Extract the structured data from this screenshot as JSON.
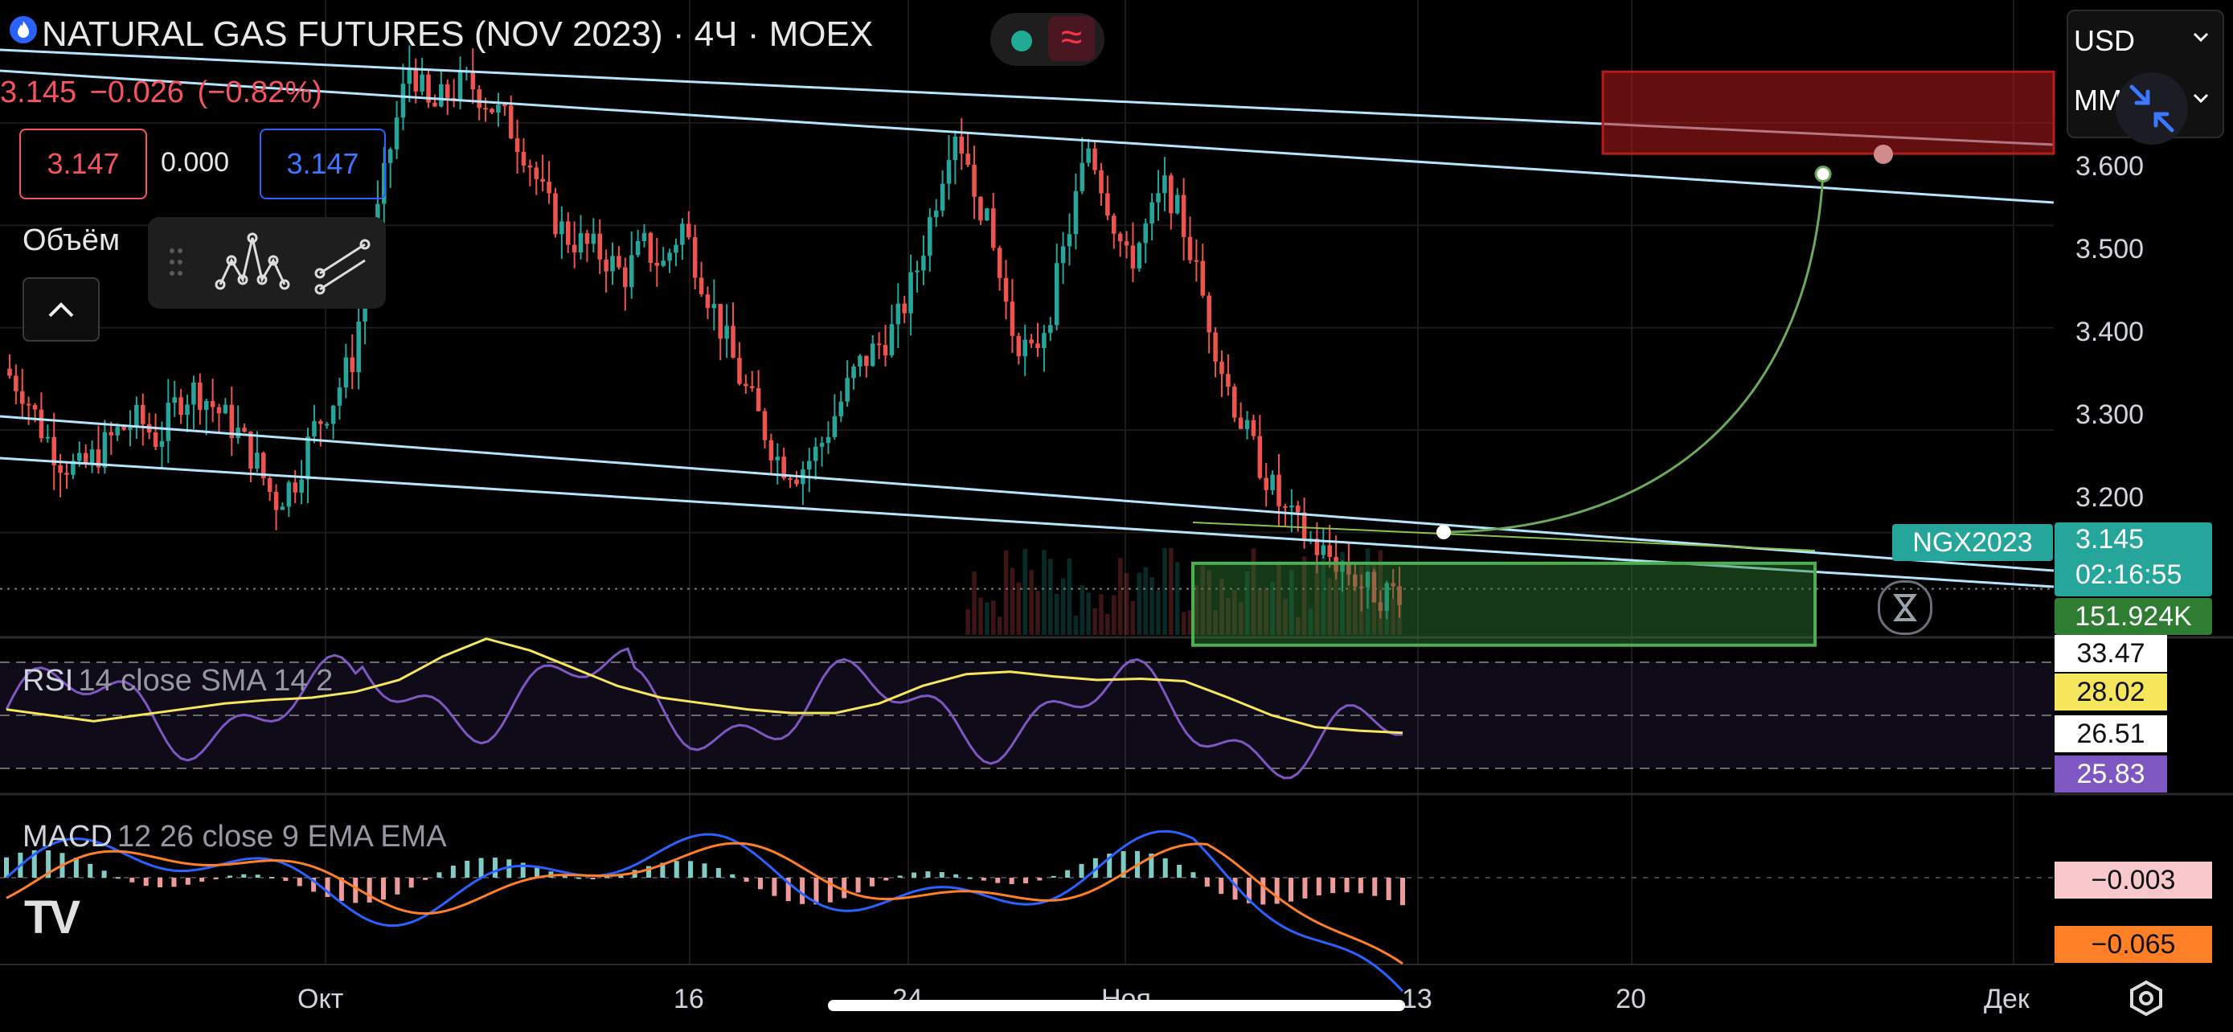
{
  "header": {
    "title": "NATURAL GAS FUTURES (NOV 2023) · 4Ч · MOEX",
    "change_price": "3.145",
    "change_abs": "−0.026",
    "change_pct": "(−0.82%)",
    "bid": "3.147",
    "spread": "0.000",
    "ask": "3.147",
    "wave_icon": "≈"
  },
  "indicators": {
    "volume_label": "Объём",
    "rsi_name": "RSI",
    "rsi_params": "14 close SMA 14 2",
    "macd_name": "MACD",
    "macd_params": "12 26 close 9 EMA EMA"
  },
  "currency": {
    "currency": "USD",
    "unit": "MM"
  },
  "price_axis": {
    "ticks": [
      "3.600",
      "3.500",
      "3.400",
      "3.300",
      "3.200"
    ],
    "symbol_label": "NGX2023",
    "last_price": "3.145",
    "countdown": "02:16:55",
    "volume": "151.924K"
  },
  "rsi_axis": {
    "values": [
      "33.47",
      "28.02",
      "26.51",
      "25.83"
    ]
  },
  "macd_axis": {
    "values": [
      "−0.003",
      "−0.065"
    ]
  },
  "time_axis": {
    "labels": [
      "Окт",
      "16",
      "24",
      "Ноя",
      "13",
      "20",
      "Дек"
    ]
  },
  "chart_data": {
    "type": "candlestick",
    "symbol": "NGX2023",
    "timeframe": "4Ч",
    "price_ylim": [
      3.1,
      3.72
    ],
    "last_price": 3.145,
    "trend_channel": "descending",
    "annotations": {
      "resistance_zone": [
        3.57,
        3.65
      ],
      "support_zone": [
        3.09,
        3.17
      ],
      "projected_target": 3.55
    },
    "close_path": [
      3.36,
      3.34,
      3.3,
      3.27,
      3.26,
      3.28,
      3.3,
      3.31,
      3.29,
      3.33,
      3.34,
      3.32,
      3.3,
      3.27,
      3.23,
      3.25,
      3.3,
      3.33,
      3.37,
      3.48,
      3.58,
      3.66,
      3.61,
      3.63,
      3.64,
      3.62,
      3.6,
      3.57,
      3.52,
      3.49,
      3.48,
      3.47,
      3.45,
      3.48,
      3.46,
      3.5,
      3.45,
      3.4,
      3.35,
      3.31,
      3.27,
      3.26,
      3.28,
      3.32,
      3.36,
      3.38,
      3.4,
      3.45,
      3.52,
      3.6,
      3.55,
      3.48,
      3.4,
      3.37,
      3.42,
      3.5,
      3.58,
      3.52,
      3.46,
      3.5,
      3.54,
      3.49,
      3.42,
      3.35,
      3.3,
      3.26,
      3.22,
      3.2,
      3.18,
      3.17,
      3.15,
      3.14,
      3.145
    ],
    "rsi_yellow_path": [
      30,
      29.5,
      29,
      29.5,
      30,
      30.5,
      30.8,
      31,
      31.5,
      32.5,
      34.5,
      36,
      35,
      33.5,
      32,
      31,
      30.5,
      30,
      29.7,
      29.7,
      30.5,
      32,
      33,
      33.2,
      32.8,
      32.5,
      32.6,
      32.4,
      31,
      29.5,
      28.5,
      28.2,
      28.02
    ],
    "macd_pair_yellow": [
      -0.003,
      -0.065
    ]
  }
}
